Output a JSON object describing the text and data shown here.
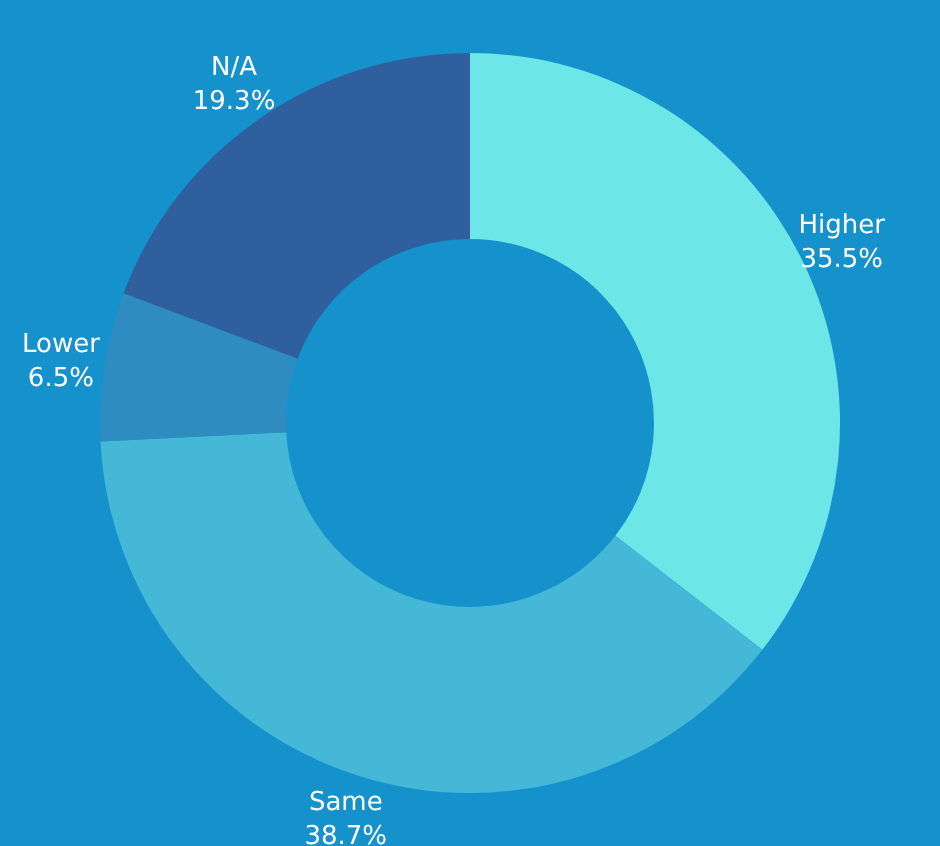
{
  "chart_data": {
    "type": "donut",
    "categories": [
      "Higher",
      "Same",
      "Lower",
      "N/A"
    ],
    "values": [
      35.5,
      38.7,
      6.5,
      19.3
    ],
    "value_labels": [
      "35.5%",
      "38.7%",
      "6.5%",
      "19.3%"
    ],
    "colors": [
      "#6de6e8",
      "#45b8d8",
      "#2e8cc0",
      "#2f5f9e"
    ]
  }
}
